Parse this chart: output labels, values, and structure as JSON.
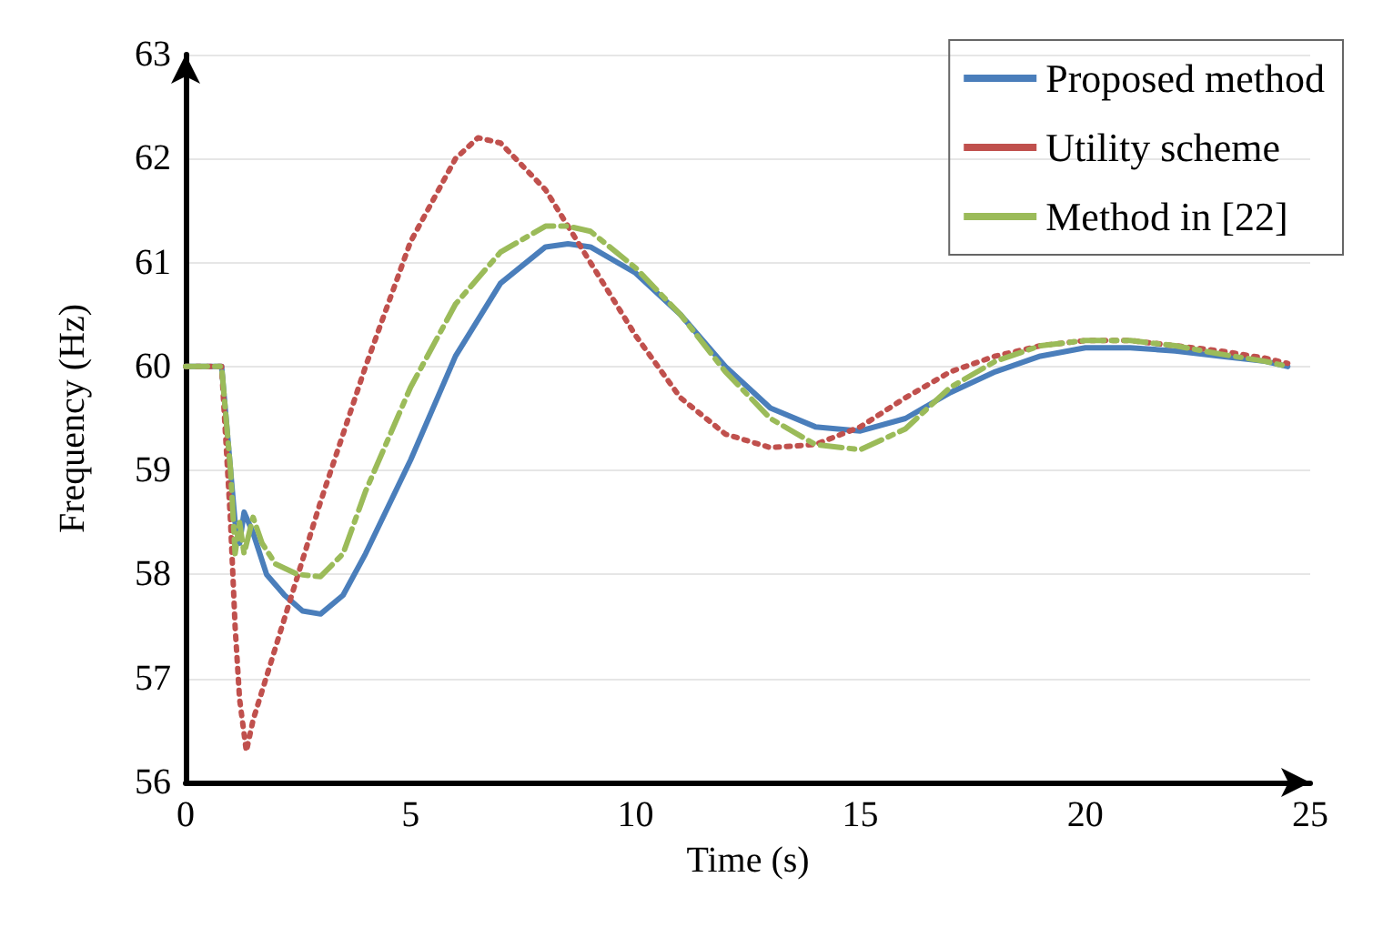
{
  "chart_data": {
    "type": "line",
    "xlabel": "Time (s)",
    "ylabel": "Frequency (Hz)",
    "xlim": [
      0,
      25
    ],
    "xticks": [
      0,
      5,
      10,
      15,
      20,
      25
    ],
    "ylim": [
      56,
      63
    ],
    "yticks": [
      56,
      57,
      58,
      59,
      60,
      61,
      62,
      63
    ],
    "grid": "y",
    "legend": "top right",
    "marker": "none",
    "series": [
      {
        "name": "Proposed method",
        "color": "#4a7ebb",
        "line_style": "solid",
        "x": [
          0,
          0.8,
          1.0,
          1.1,
          1.2,
          1.3,
          1.5,
          1.8,
          2.2,
          2.6,
          3.0,
          3.5,
          4,
          5,
          6,
          7,
          8,
          8.5,
          9,
          10,
          11,
          12,
          13,
          14,
          15,
          16,
          17,
          18,
          19,
          20,
          21,
          22,
          23,
          24,
          24.5
        ],
        "values": [
          60,
          60,
          59.0,
          58.5,
          58.3,
          58.6,
          58.4,
          58.0,
          57.8,
          57.65,
          57.62,
          57.8,
          58.2,
          59.1,
          60.1,
          60.8,
          61.15,
          61.18,
          61.15,
          60.9,
          60.5,
          60.0,
          59.6,
          59.42,
          59.38,
          59.5,
          59.75,
          59.95,
          60.1,
          60.18,
          60.18,
          60.15,
          60.1,
          60.05,
          60.0
        ]
      },
      {
        "name": "Utility scheme",
        "color": "#c0504d",
        "line_style": "dotted",
        "x": [
          0,
          0.8,
          1.0,
          1.1,
          1.2,
          1.35,
          1.5,
          2,
          2.5,
          3,
          4,
          5,
          6,
          6.5,
          7,
          8,
          9,
          10,
          11,
          12,
          13,
          14,
          15,
          16,
          17,
          18,
          19,
          20,
          21,
          22,
          23,
          24,
          24.5
        ],
        "values": [
          60,
          60,
          58.5,
          57.5,
          56.8,
          56.3,
          56.6,
          57.3,
          58.0,
          58.7,
          60.0,
          61.2,
          62.0,
          62.2,
          62.15,
          61.7,
          61.0,
          60.3,
          59.7,
          59.35,
          59.22,
          59.25,
          59.42,
          59.7,
          59.95,
          60.1,
          60.2,
          60.25,
          60.25,
          60.2,
          60.15,
          60.08,
          60.03
        ]
      },
      {
        "name": "Method in [22]",
        "color": "#9bbb59",
        "line_style": "dashed",
        "x": [
          0,
          0.8,
          1.0,
          1.1,
          1.2,
          1.3,
          1.5,
          1.7,
          2,
          2.5,
          3,
          3.5,
          4,
          5,
          6,
          7,
          8,
          8.5,
          9,
          10,
          11,
          12,
          13,
          14,
          15,
          16,
          17,
          18,
          19,
          20,
          21,
          22,
          23,
          24,
          24.5
        ],
        "values": [
          60,
          60,
          59.0,
          58.2,
          58.5,
          58.2,
          58.55,
          58.3,
          58.1,
          58.0,
          57.98,
          58.2,
          58.8,
          59.8,
          60.6,
          61.1,
          61.35,
          61.35,
          61.3,
          60.95,
          60.5,
          59.95,
          59.5,
          59.25,
          59.2,
          59.4,
          59.8,
          60.05,
          60.2,
          60.25,
          60.25,
          60.2,
          60.12,
          60.05,
          60.0
        ]
      }
    ]
  }
}
